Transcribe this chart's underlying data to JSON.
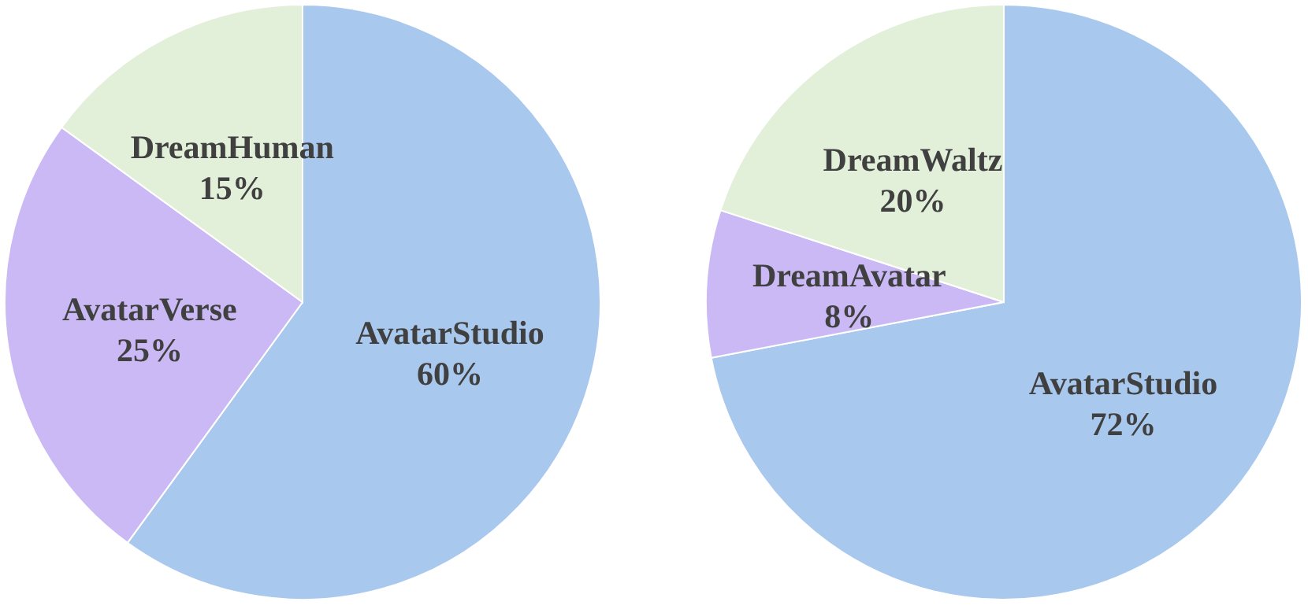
{
  "chart_data": [
    {
      "type": "pie",
      "categories": [
        "AvatarStudio",
        "AvatarVerse",
        "DreamHuman"
      ],
      "values": [
        60,
        25,
        15
      ],
      "colors": [
        "#a9c8ee",
        "#cbb9f5",
        "#e2efd9"
      ],
      "value_labels": [
        "60%",
        "25%",
        "15%"
      ]
    },
    {
      "type": "pie",
      "categories": [
        "AvatarStudio",
        "DreamAvatar",
        "DreamWaltz"
      ],
      "values": [
        72,
        8,
        20
      ],
      "colors": [
        "#a9c8ee",
        "#cbb9f5",
        "#e2efd9"
      ],
      "value_labels": [
        "72%",
        "8%",
        "20%"
      ]
    }
  ]
}
